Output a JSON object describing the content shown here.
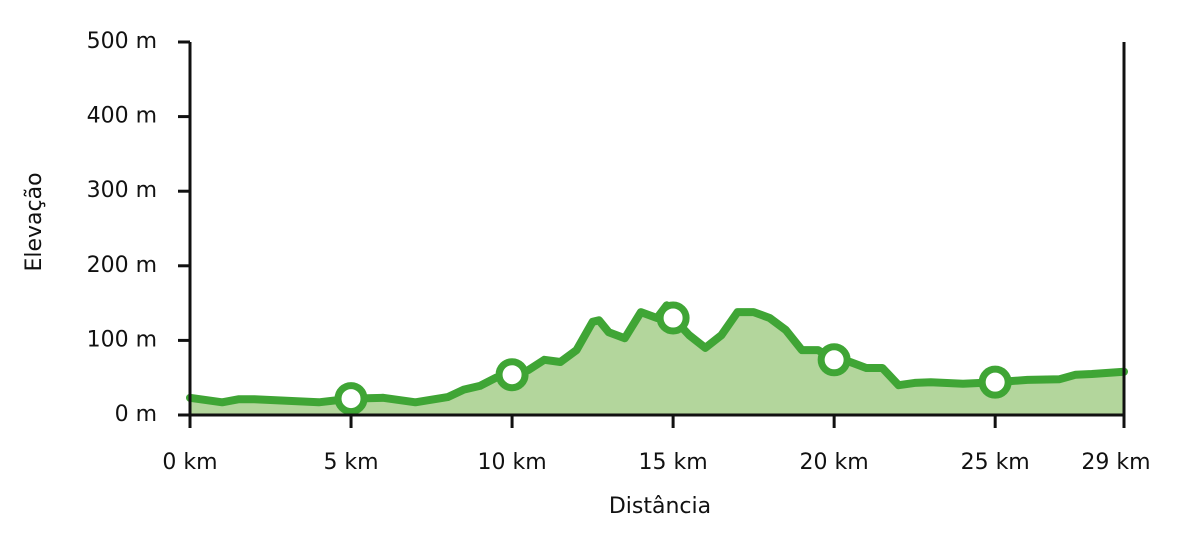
{
  "chart_data": {
    "type": "area",
    "xlabel": "Distância",
    "ylabel": "Elevação",
    "x": [
      0,
      0.5,
      1,
      1.5,
      2,
      3,
      4,
      5,
      6,
      7,
      8,
      8.5,
      9,
      9.5,
      10,
      10.5,
      11,
      11.5,
      12,
      12.5,
      12.7,
      13,
      13.5,
      14,
      14.5,
      14.8,
      15,
      15.5,
      16,
      16.5,
      17,
      17.5,
      18,
      18.5,
      19,
      19.5,
      20,
      20.5,
      21,
      21.5,
      22,
      22.5,
      23,
      24,
      25,
      26,
      27,
      27.5,
      28,
      29
    ],
    "values": [
      23,
      20,
      17,
      21,
      21,
      19,
      17,
      22,
      23,
      17,
      24,
      34,
      39,
      50,
      54,
      60,
      74,
      71,
      87,
      125,
      127,
      111,
      103,
      138,
      130,
      147,
      130,
      107,
      90,
      107,
      138,
      138,
      130,
      114,
      87,
      87,
      74,
      71,
      63,
      63,
      40,
      43,
      44,
      42,
      44,
      47,
      48,
      54,
      55,
      58
    ],
    "markers": {
      "x": [
        5,
        10,
        15,
        20,
        25
      ],
      "values": [
        22,
        54,
        130,
        74,
        44
      ]
    },
    "color": "#3fa535",
    "fill_color": "#b3d69c",
    "xlim": [
      0,
      29
    ],
    "xticks": [
      {
        "value": 0,
        "label": "0 km"
      },
      {
        "value": 5,
        "label": "5 km"
      },
      {
        "value": 10,
        "label": "10 km"
      },
      {
        "value": 15,
        "label": "15 km"
      },
      {
        "value": 20,
        "label": "20 km"
      },
      {
        "value": 25,
        "label": "25 km"
      },
      {
        "value": 29,
        "label": "29 km"
      }
    ],
    "ylim": [
      0,
      500
    ],
    "yticks": [
      {
        "value": 0,
        "label": "0 m"
      },
      {
        "value": 100,
        "label": "100 m"
      },
      {
        "value": 200,
        "label": "200 m"
      },
      {
        "value": 300,
        "label": "300 m"
      },
      {
        "value": 400,
        "label": "400 m"
      },
      {
        "value": 500,
        "label": "500 m"
      }
    ]
  }
}
